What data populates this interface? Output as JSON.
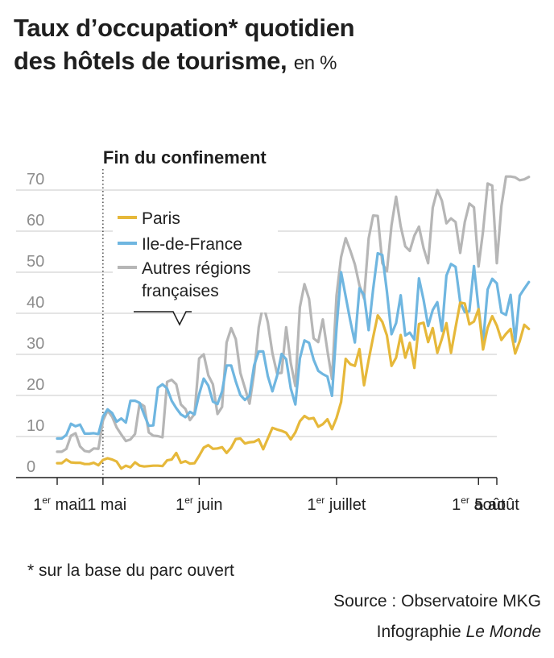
{
  "title_line1": "Taux d’occupation* quotidien",
  "title_line2": "des hôtels de tourisme,",
  "title_unit": "en %",
  "footnote": "* sur la base du parc ouvert",
  "source": "Source : Observatoire MKG",
  "credit_prefix": "Infographie",
  "credit_name": "Le Monde",
  "colors": {
    "paris": "#e6b83a",
    "idf": "#6fb6e0",
    "autres": "#b6b6b6",
    "grid": "#c9c9c9",
    "axis": "#1f1f1f"
  },
  "chart_data": {
    "type": "line",
    "ylim": [
      0,
      70
    ],
    "y_ticks": [
      0,
      10,
      20,
      30,
      40,
      50,
      60,
      70
    ],
    "x_ticks": [
      {
        "day": 0,
        "label": "1",
        "sup": "er",
        "rest": " mai"
      },
      {
        "day": 10,
        "label": "11 mai"
      },
      {
        "day": 31,
        "label": "1",
        "sup": "er",
        "rest": " juin"
      },
      {
        "day": 61,
        "label": "1",
        "sup": "er",
        "rest": " juillet"
      },
      {
        "day": 92,
        "label": "1",
        "sup": "er",
        "rest": " août"
      },
      {
        "day": 96,
        "label": "5 août"
      }
    ],
    "annotation": {
      "day": 10,
      "label": "Fin du confinement"
    },
    "legend_placement": "top-left",
    "x_start": "2020-05-01",
    "series": [
      {
        "name": "Paris",
        "key": "paris",
        "values": [
          3.5,
          3.5,
          4.4,
          3.7,
          3.6,
          3.6,
          3.3,
          3.3,
          3.6,
          3.0,
          4.3,
          4.7,
          4.4,
          3.9,
          2.2,
          2.9,
          2.5,
          3.7,
          2.9,
          2.7,
          2.8,
          2.9,
          2.9,
          2.8,
          4.2,
          4.4,
          6.0,
          3.6,
          4.0,
          3.4,
          3.5,
          5.3,
          7.3,
          7.9,
          7.0,
          7.1,
          7.4,
          6.0,
          7.3,
          9.4,
          9.5,
          8.3,
          8.6,
          8.7,
          9.3,
          6.9,
          9.5,
          12.1,
          11.7,
          11.4,
          10.9,
          9.3,
          11.0,
          13.7,
          15.0,
          14.3,
          14.5,
          12.4,
          13.0,
          14.2,
          11.8,
          14.5,
          18.4,
          28.9,
          27.6,
          27.2,
          31.3,
          22.5,
          28.6,
          34.2,
          39.5,
          37.9,
          34.6,
          27.2,
          29.2,
          34.7,
          29.2,
          32.8,
          26.7,
          37.4,
          37.7,
          33.0,
          36.4,
          30.4,
          33.8,
          37.6,
          30.4,
          36.6,
          42.6,
          42.4,
          37.3,
          38.0,
          41.0,
          31.2,
          36.5,
          39.3,
          37.0,
          33.5,
          35.0,
          36.2,
          30.2,
          33.2,
          37.2,
          36.2
        ]
      },
      {
        "name": "Ile-de-France",
        "key": "idf",
        "values": [
          9.5,
          9.5,
          10.4,
          13.1,
          12.5,
          12.9,
          10.7,
          10.7,
          10.8,
          10.6,
          14.9,
          16.6,
          15.7,
          13.6,
          14.4,
          13.4,
          18.7,
          18.7,
          18.2,
          15.3,
          12.6,
          12.7,
          21.9,
          22.7,
          21.7,
          18.7,
          16.9,
          15.4,
          14.7,
          16.0,
          15.4,
          20.3,
          24.1,
          22.4,
          18.5,
          17.9,
          21.0,
          27.3,
          27.3,
          23.4,
          20.1,
          18.9,
          20.0,
          27.3,
          30.7,
          30.7,
          24.7,
          21.0,
          24.7,
          30.1,
          28.8,
          21.7,
          17.8,
          29.0,
          33.4,
          32.8,
          28.7,
          26.0,
          25.2,
          24.6,
          19.9,
          36.3,
          50.0,
          44.1,
          38.2,
          32.9,
          46.1,
          44.5,
          35.9,
          45.9,
          54.6,
          54.2,
          45.3,
          34.9,
          37.6,
          44.4,
          34.6,
          35.3,
          33.6,
          48.5,
          43.3,
          36.9,
          40.8,
          42.7,
          35.7,
          49.2,
          52.0,
          51.3,
          42.7,
          40.3,
          40.5,
          51.5,
          41.2,
          32.8,
          45.8,
          48.4,
          47.3,
          40.2,
          39.6,
          44.5,
          33.1,
          44.3,
          46.0,
          47.6
        ]
      },
      {
        "name": "Autres régions françaises",
        "key": "autres",
        "values": [
          6.3,
          6.3,
          7.0,
          10.2,
          10.8,
          7.6,
          6.5,
          6.3,
          7.1,
          7.0,
          13.9,
          16.3,
          14.8,
          12.2,
          10.5,
          8.9,
          9.3,
          10.6,
          18.1,
          17.4,
          11.0,
          10.2,
          10.1,
          9.8,
          23.3,
          23.8,
          22.7,
          17.8,
          16.7,
          14.0,
          15.5,
          29.0,
          30.0,
          24.9,
          22.7,
          15.5,
          17.2,
          32.9,
          36.4,
          33.7,
          25.5,
          21.8,
          18.0,
          25.5,
          36.6,
          42.2,
          37.8,
          30.3,
          25.4,
          25.5,
          36.6,
          27.9,
          22.3,
          41.5,
          47.1,
          43.5,
          33.9,
          33.0,
          38.5,
          30.9,
          24.0,
          44.3,
          53.7,
          58.3,
          55.3,
          51.9,
          46.8,
          43.6,
          58.2,
          63.8,
          63.7,
          52.2,
          50.2,
          61.4,
          68.4,
          61.2,
          56.3,
          55.2,
          58.9,
          61.1,
          55.9,
          52.2,
          65.7,
          70.0,
          67.4,
          61.9,
          63.1,
          62.2,
          54.7,
          62.2,
          66.7,
          65.8,
          51.4,
          60.0,
          71.6,
          71.1,
          52.2,
          66.1,
          73.3,
          73.3,
          73.1,
          72.4,
          72.6,
          73.2
        ]
      }
    ]
  }
}
